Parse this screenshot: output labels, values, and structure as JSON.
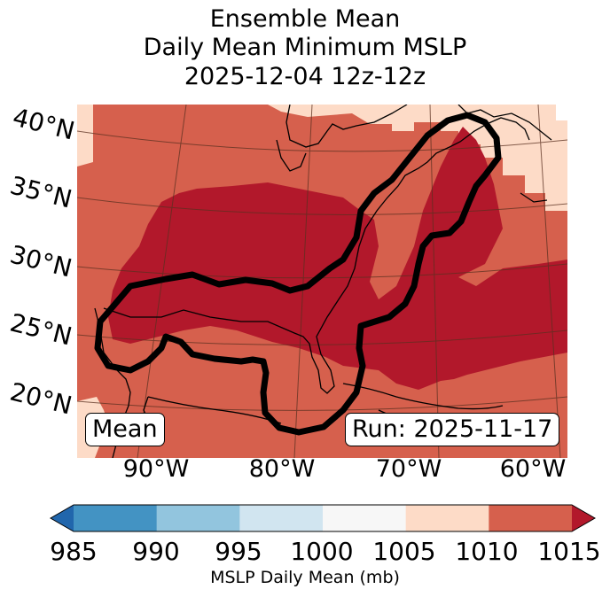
{
  "title": {
    "line1": "Ensemble Mean",
    "line2": "Daily Mean Minimum MSLP",
    "line3": "2025-12-04 12z-12z"
  },
  "map": {
    "lat_labels": [
      "40°N",
      "35°N",
      "30°N",
      "25°N",
      "20°N"
    ],
    "lon_labels": [
      "90°W",
      "80°W",
      "70°W",
      "60°W"
    ],
    "extent": {
      "lon_min": -97,
      "lon_max": -57,
      "lat_min": 15,
      "lat_max": 41
    },
    "fill_classes": [
      {
        "range": "1005-1010",
        "color": "#fddbc7"
      },
      {
        "range": "1010-1015",
        "color": "#d6604d"
      },
      {
        "range": "> 1015",
        "color": "#b2182b"
      }
    ],
    "contour_color": "#000000",
    "coastline_color": "#000000",
    "gridline_color": "#5a3020"
  },
  "badges": {
    "mean": "Mean",
    "run": "Run: 2025-11-17"
  },
  "colorbar": {
    "ticks": [
      "985",
      "990",
      "995",
      "1000",
      "1005",
      "1010",
      "1015"
    ],
    "colors": [
      "#2166ac",
      "#4393c3",
      "#92c5de",
      "#d1e5f0",
      "#f7f7f7",
      "#fddbc7",
      "#d6604d",
      "#b2182b"
    ],
    "label": "MSLP Daily Mean (mb)"
  }
}
